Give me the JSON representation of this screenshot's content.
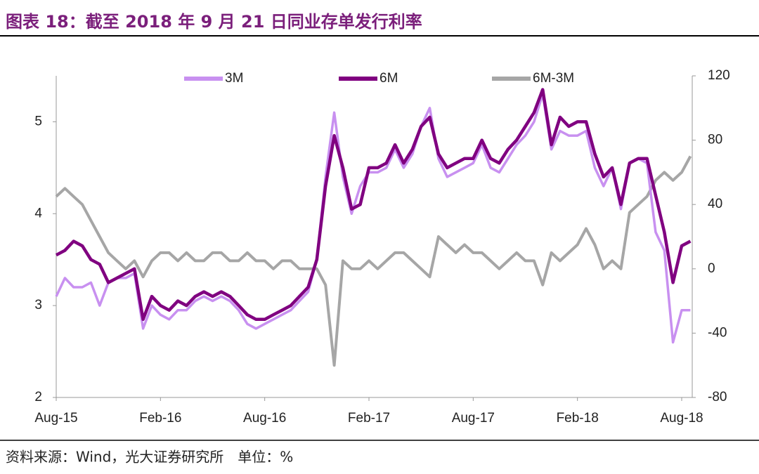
{
  "chart_data": {
    "type": "line",
    "title": "图表 18：截至 2018 年 9 月 21 日同业存单发行利率",
    "source": "资料来源：Wind，光大证券研究所　单位：%",
    "categories": [
      "Aug-15",
      null,
      null,
      null,
      null,
      null,
      null,
      null,
      null,
      null,
      null,
      null,
      "Feb-16",
      null,
      null,
      null,
      null,
      null,
      null,
      null,
      null,
      null,
      null,
      null,
      "Aug-16",
      null,
      null,
      null,
      null,
      null,
      null,
      null,
      null,
      null,
      null,
      null,
      "Feb-17",
      null,
      null,
      null,
      null,
      null,
      null,
      null,
      null,
      null,
      null,
      null,
      "Aug-17",
      null,
      null,
      null,
      null,
      null,
      null,
      null,
      null,
      null,
      null,
      null,
      "Feb-18",
      null,
      null,
      null,
      null,
      null,
      null,
      null,
      null,
      null,
      null,
      null,
      "Aug-18",
      null
    ],
    "ylim": [
      2,
      5.5
    ],
    "yticks": [
      2,
      3,
      4,
      5
    ],
    "y2lim": [
      -80,
      120
    ],
    "y2ticks": [
      -80,
      -40,
      0,
      40,
      80,
      120
    ],
    "series": [
      {
        "name": "6M-3M",
        "color": "#a6a6a6",
        "axis": "y2",
        "values": [
          45,
          50,
          45,
          40,
          30,
          20,
          10,
          5,
          0,
          5,
          -5,
          5,
          10,
          10,
          5,
          10,
          5,
          5,
          10,
          10,
          5,
          5,
          10,
          5,
          5,
          0,
          5,
          5,
          0,
          0,
          0,
          -10,
          -60,
          5,
          0,
          0,
          5,
          0,
          5,
          10,
          10,
          5,
          0,
          -5,
          20,
          15,
          10,
          15,
          10,
          10,
          5,
          0,
          5,
          10,
          5,
          5,
          -10,
          10,
          5,
          10,
          15,
          25,
          15,
          0,
          5,
          0,
          35,
          40,
          45,
          55,
          60,
          55,
          60,
          70
        ]
      },
      {
        "name": "3M",
        "color": "#c890f0",
        "values": [
          3.1,
          3.3,
          3.2,
          3.2,
          3.25,
          3.0,
          3.25,
          3.3,
          3.3,
          3.35,
          2.75,
          3.0,
          2.9,
          2.85,
          2.95,
          2.95,
          3.05,
          3.1,
          3.05,
          3.1,
          3.05,
          2.95,
          2.8,
          2.75,
          2.8,
          2.85,
          2.9,
          2.95,
          3.05,
          3.15,
          3.5,
          4.4,
          5.1,
          4.4,
          4.0,
          4.3,
          4.45,
          4.45,
          4.5,
          4.7,
          4.5,
          4.65,
          4.95,
          5.15,
          4.6,
          4.4,
          4.45,
          4.5,
          4.55,
          4.75,
          4.5,
          4.45,
          4.6,
          4.75,
          4.85,
          5.0,
          5.3,
          4.7,
          4.9,
          4.85,
          4.85,
          4.9,
          4.5,
          4.3,
          4.5,
          4.05,
          4.55,
          4.6,
          4.55,
          3.8,
          3.6,
          2.6,
          2.95,
          2.95
        ]
      },
      {
        "name": "6M",
        "color": "#800080",
        "values": [
          3.55,
          3.6,
          3.7,
          3.65,
          3.5,
          3.45,
          3.25,
          3.3,
          3.35,
          3.4,
          2.85,
          3.1,
          3.0,
          2.95,
          3.05,
          3.0,
          3.1,
          3.15,
          3.1,
          3.15,
          3.1,
          3.0,
          2.9,
          2.85,
          2.85,
          2.9,
          2.95,
          3.0,
          3.1,
          3.2,
          3.5,
          4.3,
          4.85,
          4.5,
          4.05,
          4.1,
          4.5,
          4.5,
          4.55,
          4.75,
          4.55,
          4.7,
          4.95,
          5.05,
          4.65,
          4.5,
          4.55,
          4.6,
          4.6,
          4.8,
          4.6,
          4.55,
          4.7,
          4.8,
          4.95,
          5.1,
          5.35,
          4.75,
          5.05,
          4.95,
          5.0,
          5.0,
          4.65,
          4.4,
          4.5,
          4.1,
          4.55,
          4.6,
          4.6,
          4.2,
          3.8,
          3.25,
          3.65,
          3.7
        ]
      }
    ]
  }
}
